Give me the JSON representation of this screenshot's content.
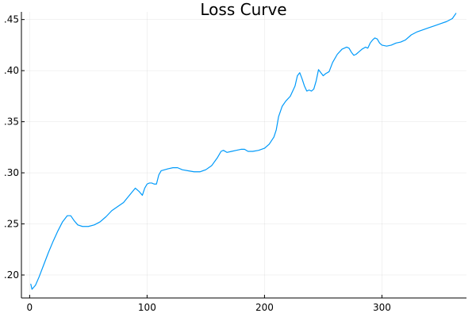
{
  "chart_data": {
    "type": "line",
    "title": "Loss Curve",
    "xlabel": "",
    "ylabel": "",
    "xlim": [
      -7,
      372
    ],
    "ylim": [
      0.1775,
      0.4575
    ],
    "xticks": [
      0,
      100,
      200,
      300
    ],
    "xtick_labels": [
      "0",
      "100",
      "200",
      "300"
    ],
    "yticks": [
      0.2,
      0.25,
      0.3,
      0.35,
      0.4,
      0.45
    ],
    "ytick_labels": [
      ".20",
      ".25",
      ".30",
      ".35",
      ".40",
      ".45"
    ],
    "grid": true,
    "legend": "none",
    "series_color": "#009AFA",
    "series": [
      {
        "x": [
          1,
          2,
          5,
          8,
          12,
          16,
          20,
          24,
          28,
          32,
          35,
          38,
          41,
          45,
          50,
          55,
          60,
          65,
          70,
          75,
          80,
          85,
          90,
          93,
          96,
          98,
          100,
          102,
          104,
          106,
          108,
          110,
          112,
          115,
          118,
          122,
          126,
          130,
          135,
          140,
          145,
          150,
          155,
          160,
          163,
          165,
          168,
          172,
          176,
          180,
          183,
          186,
          190,
          195,
          200,
          204,
          208,
          210,
          212,
          215,
          218,
          222,
          226,
          228,
          230,
          232,
          234,
          236,
          238,
          240,
          242,
          244,
          246,
          248,
          250,
          252,
          255,
          258,
          262,
          266,
          270,
          272,
          274,
          276,
          278,
          280,
          283,
          286,
          288,
          290,
          292,
          294,
          296,
          298,
          300,
          304,
          308,
          312,
          316,
          320,
          325,
          330,
          335,
          340,
          345,
          350,
          355,
          360,
          363
        ],
        "y": [
          0.191,
          0.186,
          0.19,
          0.198,
          0.21,
          0.222,
          0.233,
          0.243,
          0.252,
          0.258,
          0.258,
          0.253,
          0.249,
          0.2475,
          0.2475,
          0.249,
          0.252,
          0.257,
          0.263,
          0.267,
          0.271,
          0.278,
          0.285,
          0.282,
          0.278,
          0.285,
          0.289,
          0.29,
          0.29,
          0.289,
          0.289,
          0.298,
          0.302,
          0.303,
          0.304,
          0.305,
          0.305,
          0.303,
          0.302,
          0.301,
          0.301,
          0.303,
          0.307,
          0.315,
          0.321,
          0.322,
          0.32,
          0.321,
          0.322,
          0.323,
          0.323,
          0.321,
          0.321,
          0.322,
          0.324,
          0.328,
          0.335,
          0.342,
          0.355,
          0.365,
          0.37,
          0.375,
          0.385,
          0.395,
          0.398,
          0.392,
          0.385,
          0.38,
          0.381,
          0.38,
          0.382,
          0.39,
          0.401,
          0.398,
          0.395,
          0.397,
          0.399,
          0.408,
          0.416,
          0.421,
          0.423,
          0.422,
          0.418,
          0.415,
          0.416,
          0.418,
          0.421,
          0.423,
          0.422,
          0.427,
          0.43,
          0.432,
          0.431,
          0.427,
          0.425,
          0.424,
          0.425,
          0.427,
          0.428,
          0.43,
          0.435,
          0.438,
          0.44,
          0.442,
          0.444,
          0.446,
          0.448,
          0.451,
          0.456
        ]
      }
    ]
  }
}
